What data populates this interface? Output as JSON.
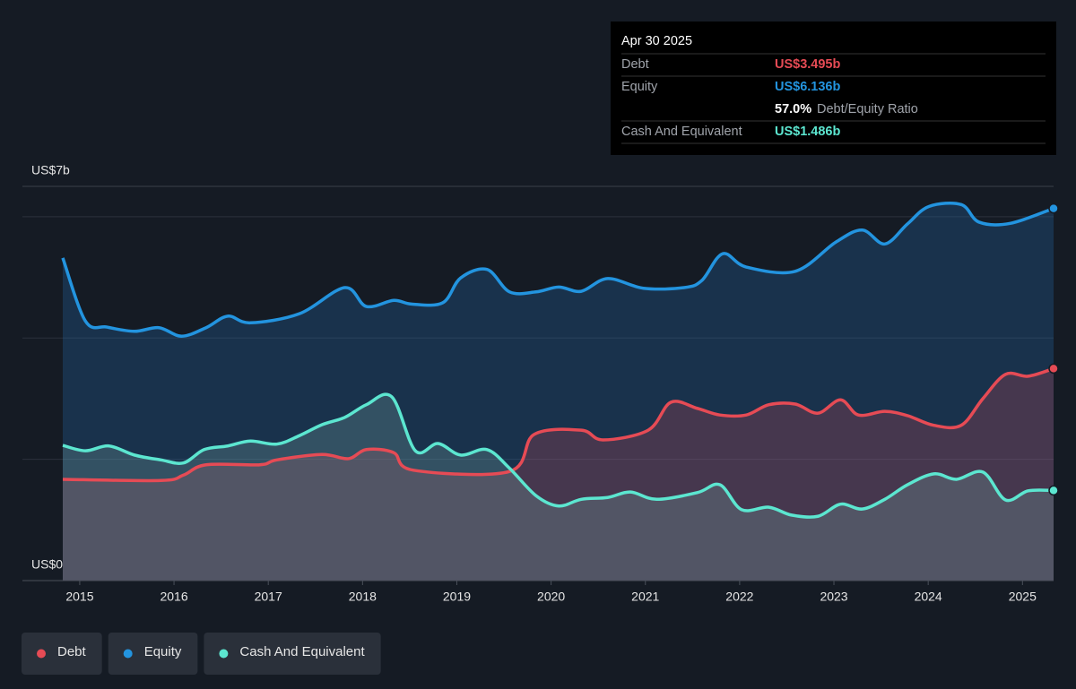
{
  "chart_data": {
    "type": "line",
    "tooltip": {
      "date": "Apr 30 2025",
      "rows": [
        {
          "label": "Debt",
          "value": "US$3.495b"
        },
        {
          "label": "Equity",
          "value": "US$6.136b"
        }
      ],
      "ratio": "57.0%",
      "ratio_label": "Debt/Equity Ratio",
      "cash": {
        "label": "Cash And Equivalent",
        "value": "US$1.486b"
      }
    },
    "xlim": [
      2014.82,
      2025.33
    ],
    "xticks": [
      2015,
      2016,
      2017,
      2018,
      2019,
      2020,
      2021,
      2022,
      2023,
      2024,
      2025
    ],
    "ylim": [
      0,
      6.5
    ],
    "yticks": [
      {
        "value": 0,
        "label": "US$0"
      },
      {
        "value": 6.5,
        "label": "US$7b"
      }
    ],
    "grid_values": [
      2,
      4,
      6
    ],
    "series": [
      {
        "name": "Equity",
        "color": "#2394df",
        "x": [
          2014.82,
          2015.06,
          2015.29,
          2015.58,
          2015.84,
          2016.08,
          2016.34,
          2016.57,
          2016.81,
          2017.33,
          2017.81,
          2018.04,
          2018.33,
          2018.52,
          2018.85,
          2019.04,
          2019.32,
          2019.56,
          2019.84,
          2020.08,
          2020.32,
          2020.6,
          2020.98,
          2021.41,
          2021.6,
          2021.82,
          2022.07,
          2022.59,
          2023.02,
          2023.3,
          2023.54,
          2023.78,
          2024.01,
          2024.35,
          2024.54,
          2024.87,
          2025.33
        ],
        "values": [
          5.32,
          4.28,
          4.18,
          4.11,
          4.17,
          4.03,
          4.17,
          4.36,
          4.25,
          4.4,
          4.83,
          4.52,
          4.62,
          4.56,
          4.58,
          4.99,
          5.13,
          4.76,
          4.76,
          4.84,
          4.77,
          4.98,
          4.82,
          4.83,
          4.95,
          5.39,
          5.17,
          5.1,
          5.58,
          5.78,
          5.55,
          5.88,
          6.17,
          6.2,
          5.91,
          5.89,
          6.136
        ]
      },
      {
        "name": "Debt",
        "color": "#e64b55",
        "x": [
          2014.82,
          2015.86,
          2016.1,
          2016.34,
          2016.91,
          2017.09,
          2017.57,
          2017.85,
          2018.04,
          2018.33,
          2018.54,
          2019.56,
          2019.82,
          2020.32,
          2020.55,
          2021.03,
          2021.27,
          2021.55,
          2021.79,
          2022.07,
          2022.31,
          2022.59,
          2022.83,
          2023.07,
          2023.26,
          2023.54,
          2023.78,
          2024.06,
          2024.35,
          2024.58,
          2024.82,
          2025.06,
          2025.33
        ],
        "values": [
          1.67,
          1.65,
          1.74,
          1.91,
          1.91,
          1.99,
          2.08,
          2.01,
          2.16,
          2.11,
          1.82,
          1.8,
          2.41,
          2.48,
          2.32,
          2.48,
          2.94,
          2.84,
          2.73,
          2.73,
          2.9,
          2.91,
          2.76,
          2.98,
          2.73,
          2.79,
          2.72,
          2.56,
          2.56,
          3.0,
          3.4,
          3.37,
          3.495
        ]
      },
      {
        "name": "Cash And Equivalent",
        "color": "#5ce6d0",
        "x": [
          2014.82,
          2015.06,
          2015.31,
          2015.58,
          2015.86,
          2016.1,
          2016.32,
          2016.57,
          2016.81,
          2017.09,
          2017.33,
          2017.57,
          2017.81,
          2018.04,
          2018.31,
          2018.56,
          2018.8,
          2019.04,
          2019.32,
          2019.56,
          2019.84,
          2020.08,
          2020.32,
          2020.6,
          2020.84,
          2021.12,
          2021.55,
          2021.79,
          2022.02,
          2022.31,
          2022.55,
          2022.83,
          2023.07,
          2023.3,
          2023.54,
          2023.78,
          2024.06,
          2024.3,
          2024.58,
          2024.82,
          2025.06,
          2025.33
        ],
        "values": [
          2.23,
          2.14,
          2.22,
          2.07,
          1.99,
          1.94,
          2.16,
          2.22,
          2.3,
          2.25,
          2.39,
          2.57,
          2.69,
          2.9,
          3.03,
          2.14,
          2.26,
          2.07,
          2.16,
          1.85,
          1.4,
          1.23,
          1.34,
          1.37,
          1.46,
          1.34,
          1.45,
          1.58,
          1.17,
          1.21,
          1.08,
          1.06,
          1.26,
          1.18,
          1.34,
          1.58,
          1.76,
          1.67,
          1.79,
          1.33,
          1.48,
          1.486
        ]
      }
    ]
  }
}
